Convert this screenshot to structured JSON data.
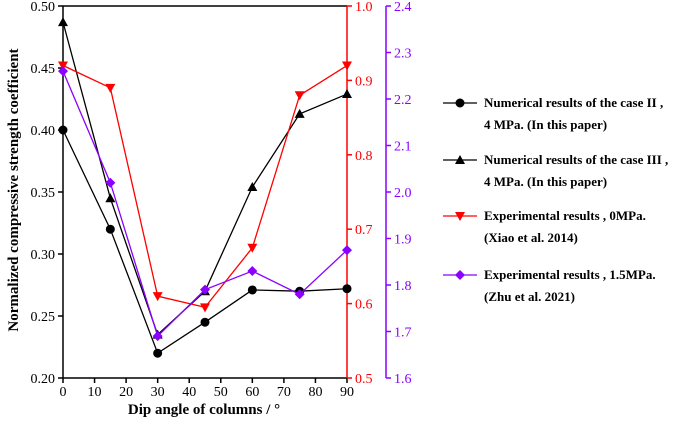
{
  "chart_data": {
    "type": "line",
    "title": "",
    "xlabel": "Dip angle of columns / °",
    "ylabel": "Normalized compressive strength coefficient",
    "x": [
      0,
      15,
      30,
      45,
      60,
      75,
      90
    ],
    "xlim": [
      0,
      90
    ],
    "xticks": [
      "0",
      "10",
      "20",
      "30",
      "40",
      "50",
      "60",
      "70",
      "80",
      "90"
    ],
    "axes": [
      {
        "id": "left",
        "color": "#000000",
        "ylim": [
          0.2,
          0.5
        ],
        "ticks": [
          "0.20",
          "0.25",
          "0.30",
          "0.35",
          "0.40",
          "0.45",
          "0.50"
        ]
      },
      {
        "id": "red",
        "color": "#ff0000",
        "ylim": [
          0.5,
          1.0
        ],
        "ticks": [
          "0.5",
          "0.6",
          "0.7",
          "0.8",
          "0.9",
          "1.0"
        ]
      },
      {
        "id": "purple",
        "color": "#8b00ff",
        "ylim": [
          1.6,
          2.4
        ],
        "ticks": [
          "1.6",
          "1.7",
          "1.8",
          "1.9",
          "2.0",
          "2.1",
          "2.2",
          "2.3",
          "2.4"
        ]
      }
    ],
    "series": [
      {
        "name": "Numerical results of the case II",
        "axis": "left",
        "color": "#000000",
        "marker": "circle",
        "values": [
          0.4,
          0.32,
          0.22,
          0.245,
          0.271,
          0.27,
          0.272
        ]
      },
      {
        "name": "Numerical results of the case III",
        "axis": "left",
        "color": "#000000",
        "marker": "triangle-up",
        "values": [
          0.487,
          0.345,
          0.235,
          0.27,
          0.354,
          0.413,
          0.429
        ]
      },
      {
        "name": "Experimental results, 0MPa",
        "axis": "red",
        "color": "#ff0000",
        "marker": "triangle-down",
        "values": [
          0.92,
          0.89,
          0.61,
          0.595,
          0.675,
          0.88,
          0.92
        ]
      },
      {
        "name": "Experimental results, 1.5MPa",
        "axis": "purple",
        "color": "#8b00ff",
        "marker": "diamond",
        "values": [
          2.26,
          2.02,
          1.69,
          1.79,
          1.83,
          1.78,
          1.875
        ]
      }
    ],
    "legend": {
      "position": "right",
      "entries": [
        {
          "line1": "Numerical results of the case II ,",
          "line2": "4 MPa.   (In this paper)",
          "color": "#000000",
          "marker": "circle"
        },
        {
          "line1": "Numerical results of the case III ,",
          "line2": "4 MPa.   (In this paper)",
          "color": "#000000",
          "marker": "triangle-up"
        },
        {
          "line1": "Experimental results ,  0MPa.",
          "line2": "(Xiao et al. 2014)",
          "color": "#ff0000",
          "marker": "triangle-down"
        },
        {
          "line1": "Experimental results ,  1.5MPa.",
          "line2": "(Zhu et al. 2021)",
          "color": "#8b00ff",
          "marker": "diamond"
        }
      ]
    }
  }
}
